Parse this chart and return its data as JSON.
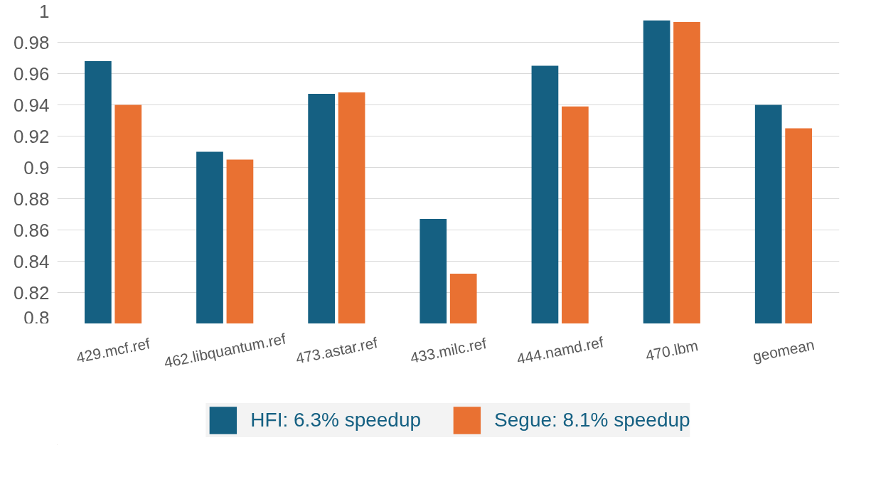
{
  "chart_data": {
    "type": "bar",
    "categories": [
      "429.mcf.ref",
      "462.libquantum.ref",
      "473.astar.ref",
      "433.milc.ref",
      "444.namd.ref",
      "470.lbm",
      "geomean"
    ],
    "series": [
      {
        "name": "HFI: 6.3% speedup",
        "color": "#156082",
        "values": [
          0.968,
          0.91,
          0.947,
          0.867,
          0.965,
          0.994,
          0.94
        ]
      },
      {
        "name": "Segue: 8.1% speedup",
        "color": "#e97132",
        "values": [
          0.94,
          0.905,
          0.948,
          0.832,
          0.939,
          0.993,
          0.925
        ]
      }
    ],
    "ylim": [
      0.8,
      1.0
    ],
    "yticks": [
      0.8,
      0.82,
      0.84,
      0.86,
      0.88,
      0.9,
      0.92,
      0.94,
      0.96,
      0.98,
      1
    ],
    "grid": "y",
    "legend": "bottom"
  }
}
